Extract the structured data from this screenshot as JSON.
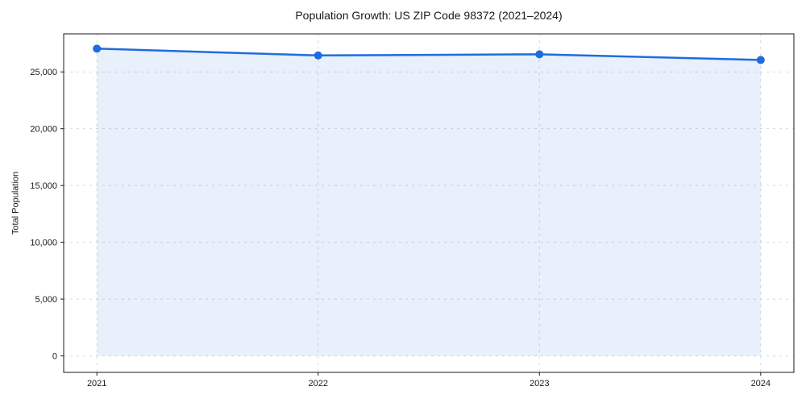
{
  "chart_data": {
    "type": "area",
    "title": "Population Growth: US ZIP Code 98372 (2021–2024)",
    "xlabel": "",
    "ylabel": "Total Population",
    "x": [
      2021,
      2022,
      2023,
      2024
    ],
    "series": [
      {
        "name": "Total Population",
        "values": [
          27050,
          26450,
          26550,
          26050
        ]
      }
    ],
    "xticks": [
      2021,
      2022,
      2023,
      2024
    ],
    "xtick_labels": [
      "2021",
      "2022",
      "2023",
      "2024"
    ],
    "yticks": [
      0,
      5000,
      10000,
      15000,
      20000,
      25000
    ],
    "ytick_labels": [
      "0",
      "5,000",
      "10,000",
      "15,000",
      "20,000",
      "25,000"
    ],
    "xlim": [
      2020.85,
      2024.15
    ],
    "ylim": [
      -1450,
      28350
    ],
    "grid": true,
    "grid_style": "dashed",
    "legend_position": "none",
    "baseline": 0,
    "colors": {
      "line": "#1f6ce0",
      "marker": "#1f6ce0",
      "fill": "#1f6ce0",
      "fill_opacity": 0.1,
      "grid": "#d9d9d9",
      "spine": "#1a1a1a",
      "tick_text": "#1a1a1a"
    }
  }
}
